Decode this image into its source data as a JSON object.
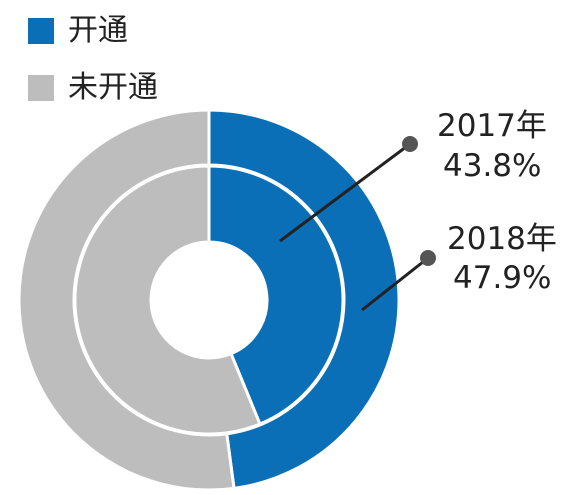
{
  "chart_data": {
    "type": "pie",
    "legend": [
      {
        "label": "开通",
        "color": "#0a6fb7"
      },
      {
        "label": "未开通",
        "color": "#bdbdbd"
      }
    ],
    "series": [
      {
        "name": "2017年",
        "values": [
          43.8,
          56.2
        ],
        "ring": "inner"
      },
      {
        "name": "2018年",
        "values": [
          47.9,
          52.1
        ],
        "ring": "outer"
      }
    ],
    "categories": [
      "开通",
      "未开通"
    ],
    "annotations": [
      {
        "year": "2017年",
        "value": "43.8%"
      },
      {
        "year": "2018年",
        "value": "47.9%"
      }
    ],
    "legend_position": "top-left"
  }
}
